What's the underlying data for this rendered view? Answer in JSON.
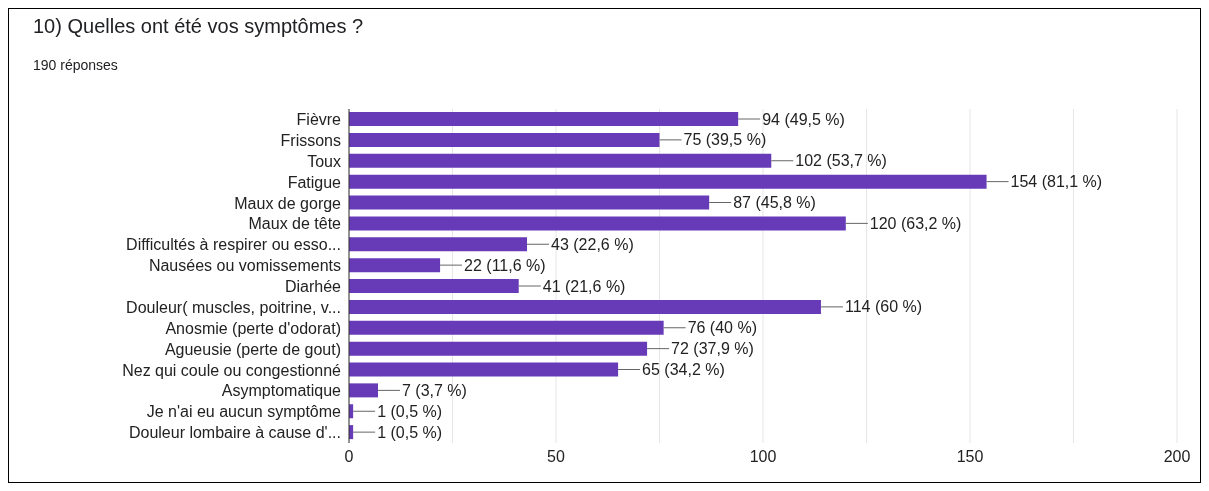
{
  "chart_data": {
    "type": "bar",
    "orientation": "horizontal",
    "title": "10) Quelles ont été vos symptômes ?",
    "subtitle": "190 réponses",
    "categories": [
      "Fièvre",
      "Frissons",
      "Toux",
      "Fatigue",
      "Maux de gorge",
      "Maux de tête",
      "Difficultés à respirer ou esso...",
      "Nausées ou vomissements",
      "Diarhée",
      "Douleur( muscles, poitrine, v...",
      "Anosmie (perte d'odorat)",
      "Agueusie (perte de gout)",
      "Nez qui coule ou congestionné",
      "Asymptomatique",
      "Je n'ai eu aucun symptôme",
      "Douleur lombaire à cause d'..."
    ],
    "values": [
      94,
      75,
      102,
      154,
      87,
      120,
      43,
      22,
      41,
      114,
      76,
      72,
      65,
      7,
      1,
      1
    ],
    "value_labels": [
      "94 (49,5 %)",
      "75 (39,5 %)",
      "102 (53,7 %)",
      "154 (81,1 %)",
      "87 (45,8 %)",
      "120 (63,2 %)",
      "43 (22,6 %)",
      "22 (11,6 %)",
      "41 (21,6 %)",
      "114 (60 %)",
      "76 (40 %)",
      "72 (37,9 %)",
      "65 (34,2 %)",
      "7 (3,7 %)",
      "1 (0,5 %)",
      "1 (0,5 %)"
    ],
    "color": "#673ab7",
    "xlim": [
      0,
      200
    ],
    "xticks": [
      0,
      {
        "value": 25,
        "label": null
      },
      50,
      {
        "value": 75,
        "label": null
      },
      100,
      {
        "value": 125,
        "label": null
      },
      150,
      {
        "value": 175,
        "label": null
      },
      200
    ],
    "grid": "x",
    "legend": false
  }
}
